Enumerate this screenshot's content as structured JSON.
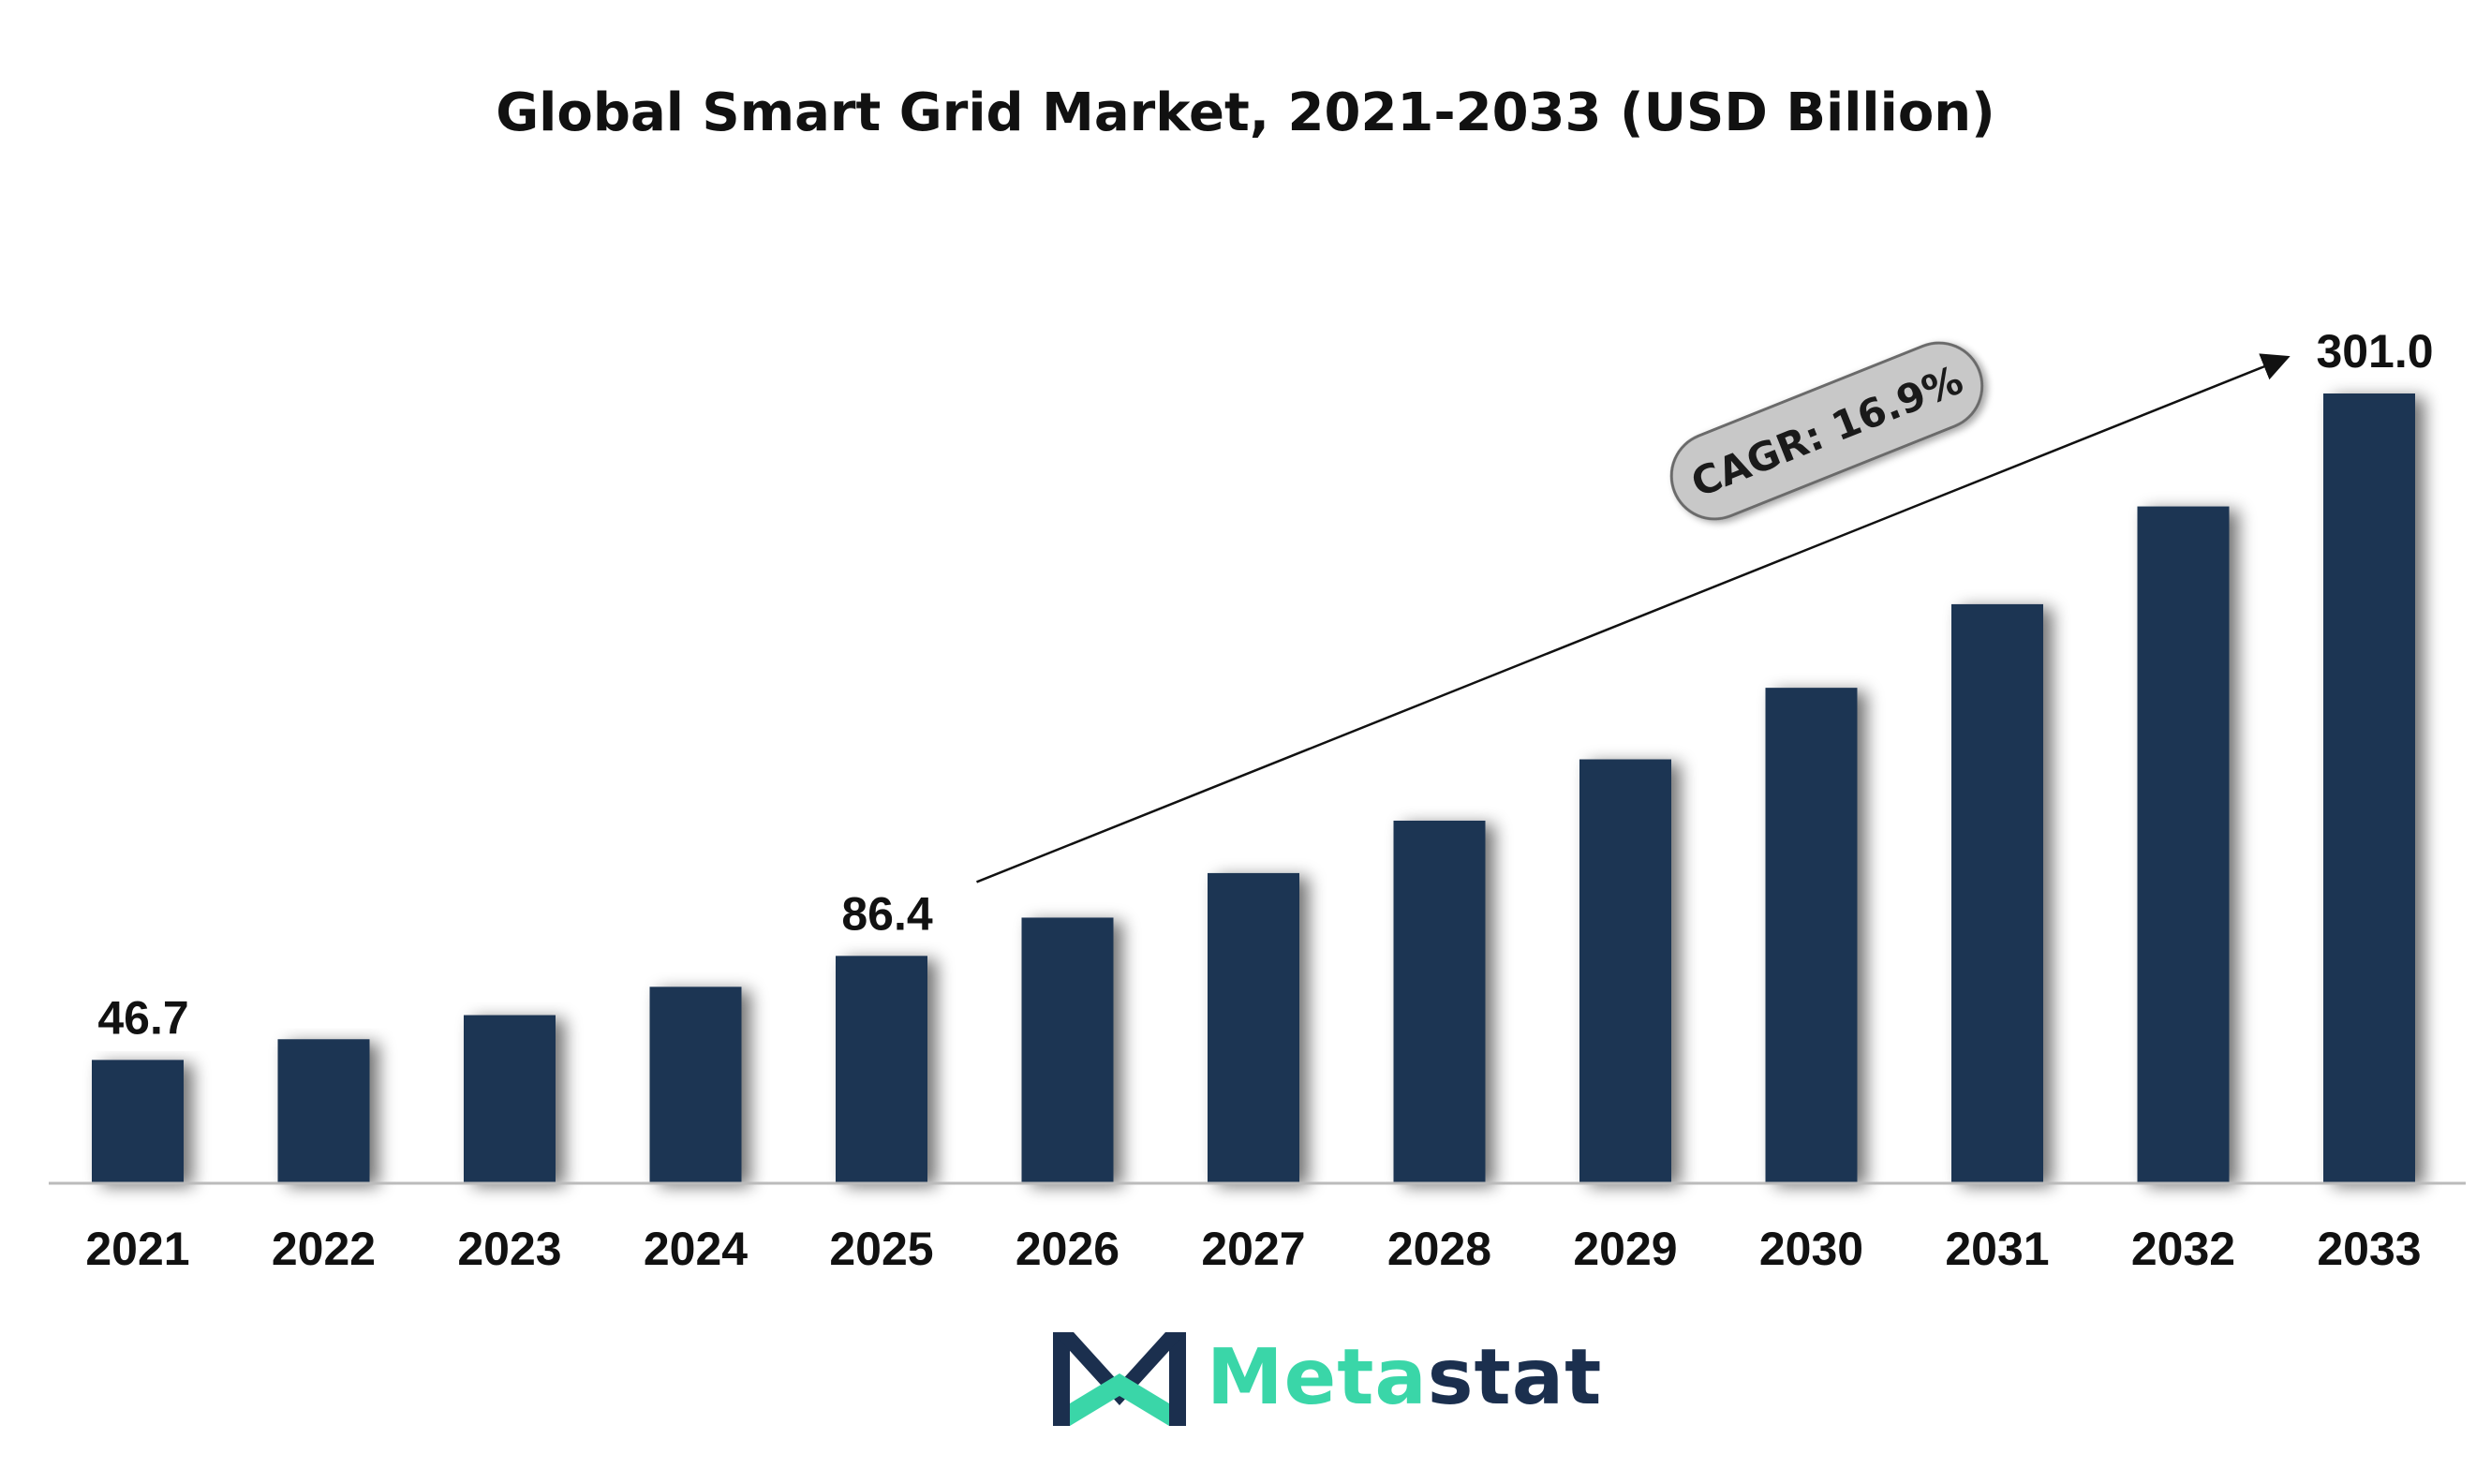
{
  "colors": {
    "bar": "#1b3452",
    "axis": "#bbbbbb",
    "cagr_fill": "#c8c8c8",
    "cagr_stroke": "#6a6a6a",
    "logo_meta": "#3ad6a8",
    "logo_stat": "#1b2f4e"
  },
  "chart_data": {
    "type": "bar",
    "title": "Global Smart Grid Market, 2021-2033 (USD Billion)",
    "xlabel": "",
    "ylabel": "",
    "categories": [
      "2021",
      "2022",
      "2023",
      "2024",
      "2025",
      "2026",
      "2027",
      "2028",
      "2029",
      "2030",
      "2031",
      "2032",
      "2033"
    ],
    "values": [
      46.7,
      54.6,
      63.8,
      74.6,
      86.4,
      101.0,
      118.0,
      138.0,
      161.4,
      188.7,
      220.6,
      257.9,
      301.0
    ],
    "data_labels": {
      "2021": "46.7",
      "2025": "86.4",
      "2033": "301.0"
    },
    "ylim": [
      0,
      320
    ],
    "grid": false,
    "annotation": {
      "text": "CAGR: 16.9%",
      "arrow_from": "2026",
      "arrow_to": "2033"
    }
  },
  "logo": {
    "part1": "Meta",
    "part2": "stat",
    "icon": "metastat-m-logo-icon"
  }
}
